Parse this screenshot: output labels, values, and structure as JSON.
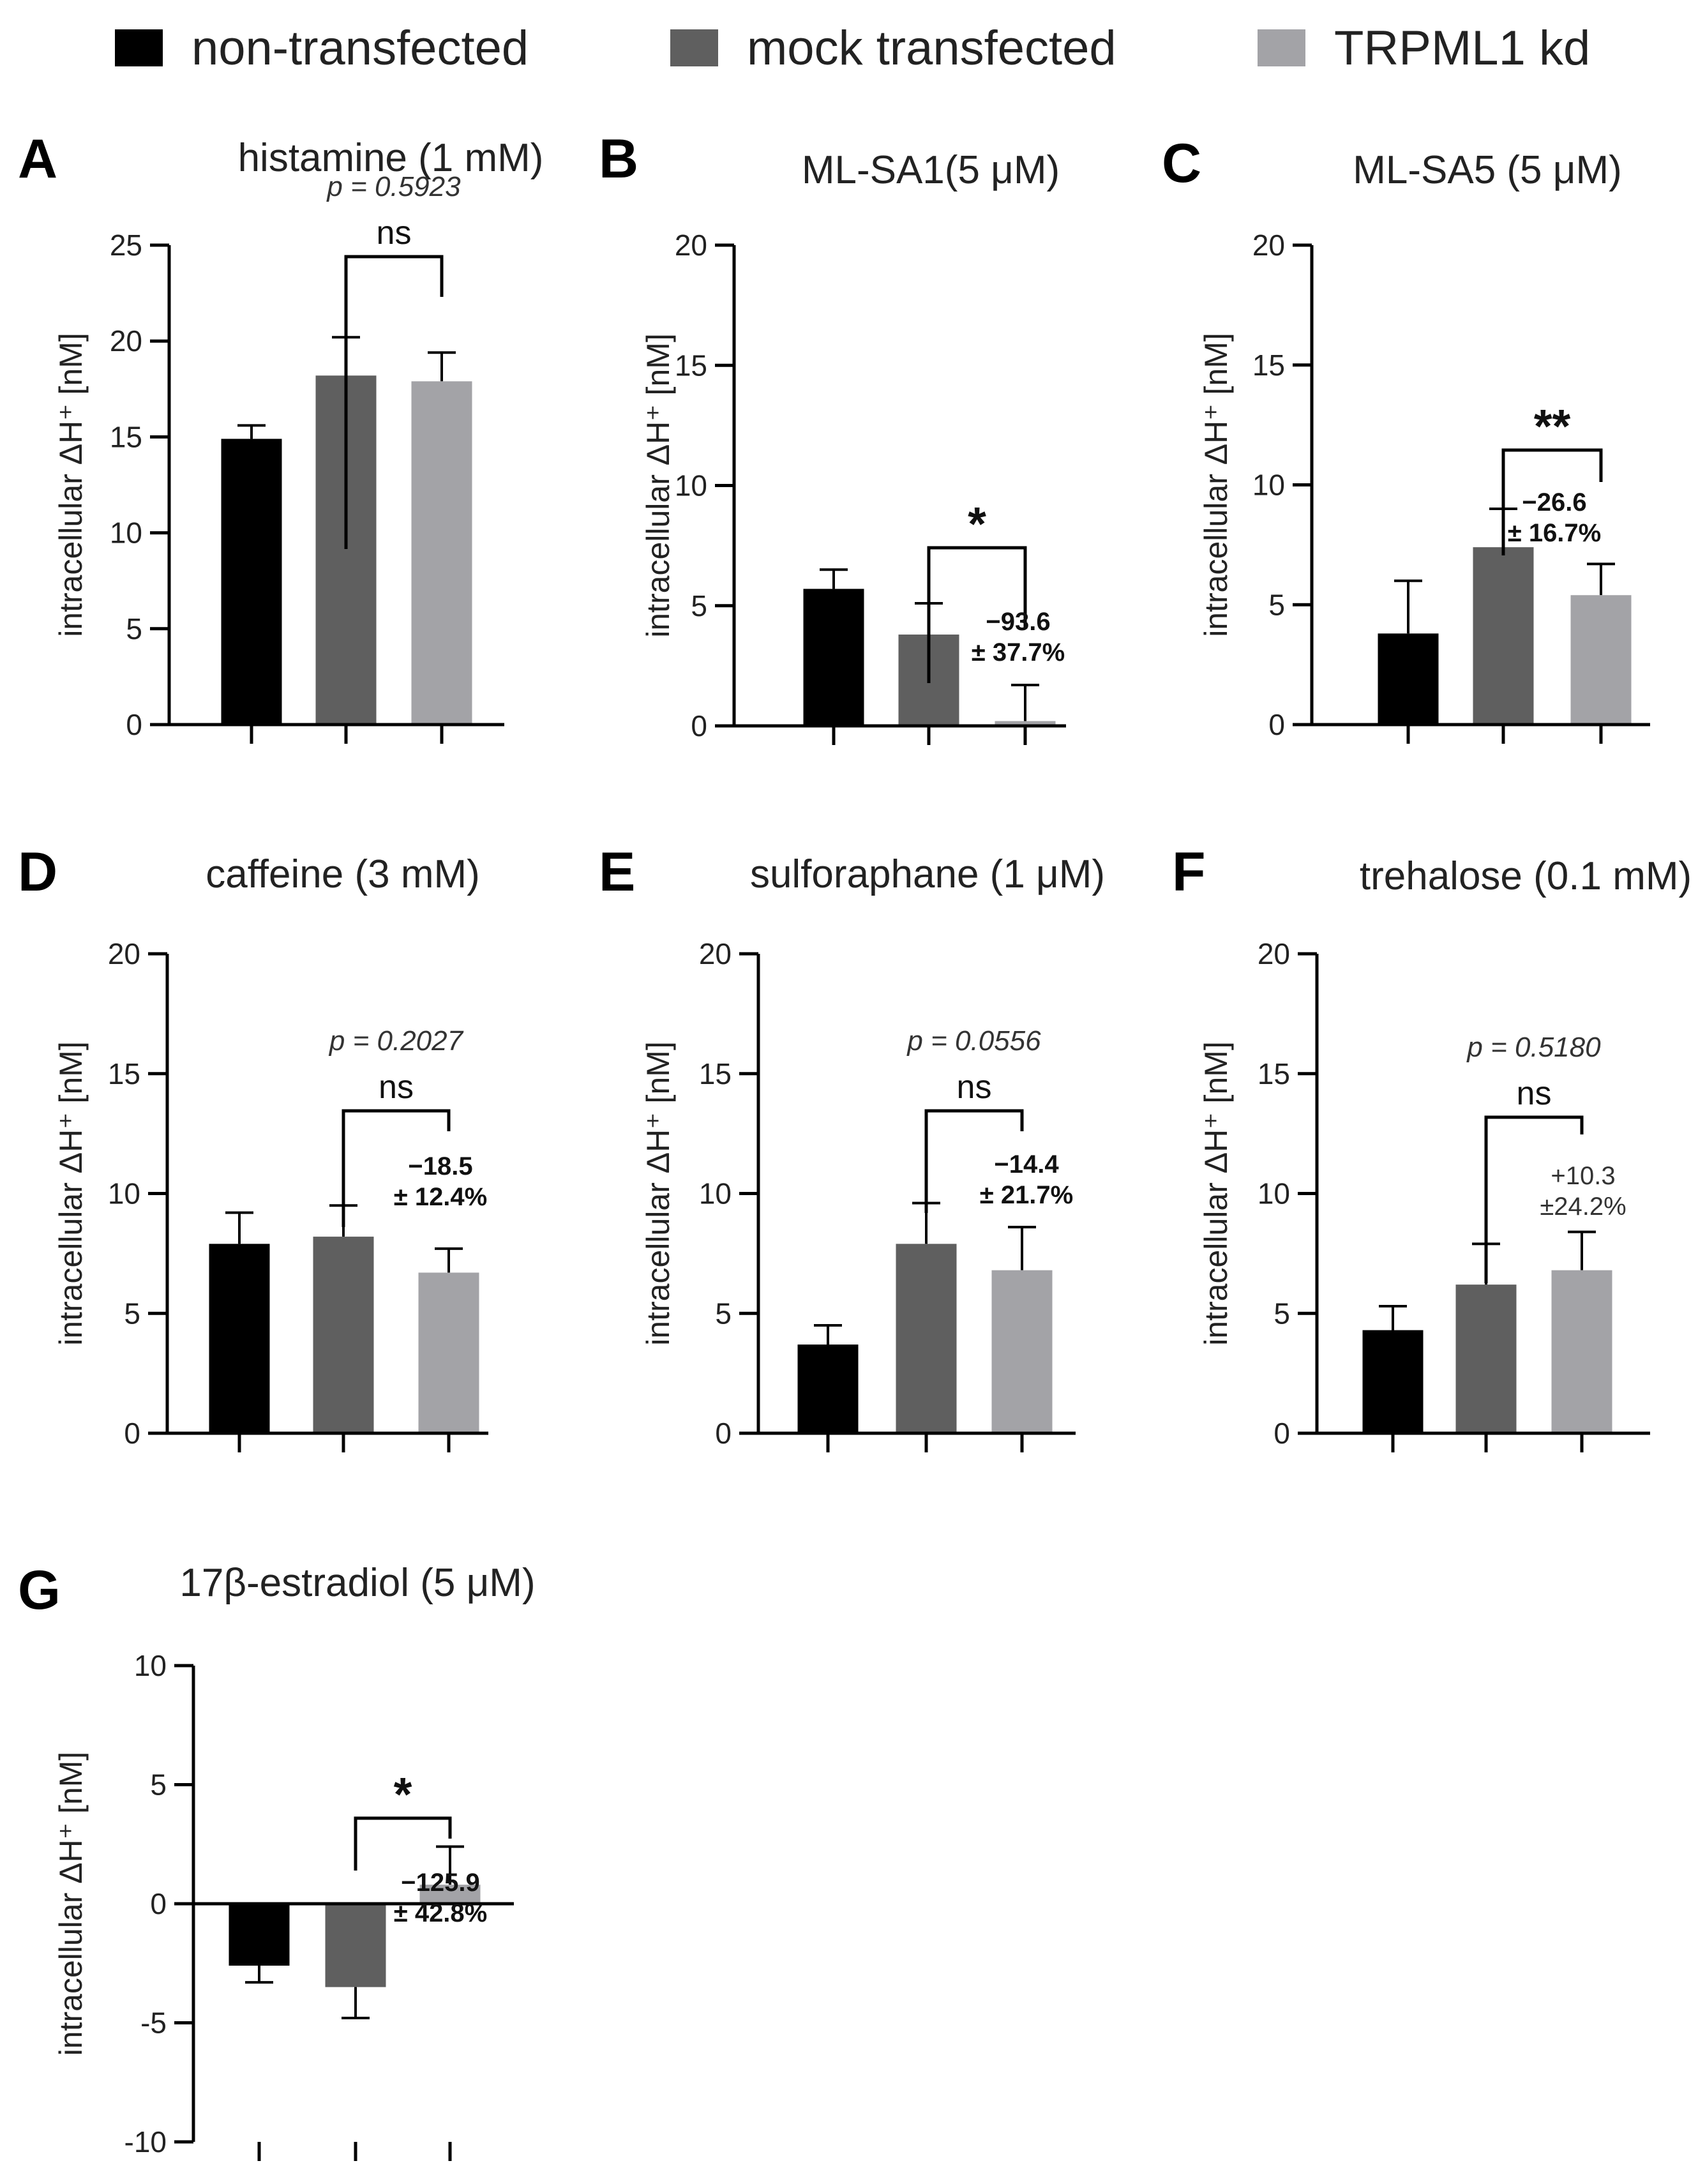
{
  "legend": [
    {
      "label": "non-transfected",
      "color": "#000000"
    },
    {
      "label": "mock transfected",
      "color": "#5f5f5f"
    },
    {
      "label": "TRPML1 kd",
      "color": "#a3a3a7"
    }
  ],
  "chart_data": [
    {
      "panel": "A",
      "type": "bar",
      "title": "histamine (1 mM)",
      "ylabel": "intracellular ΔH⁺ [nM]",
      "xlabel": "",
      "categories": [
        "non-transfected",
        "mock transfected",
        "TRPML1 kd"
      ],
      "values": [
        14.9,
        18.2,
        17.9
      ],
      "errors": [
        0.7,
        2.0,
        1.5
      ],
      "ylim": [
        0,
        25
      ],
      "yticks": [
        0,
        5,
        10,
        15,
        20,
        25
      ],
      "comparison": {
        "from": 1,
        "to": 2,
        "pvalue": "p = 0.5923",
        "sig": "ns",
        "change": null
      }
    },
    {
      "panel": "B",
      "type": "bar",
      "title": "ML-SA1(5 μM)",
      "ylabel": "intracellular ΔH⁺ [nM]",
      "xlabel": "",
      "categories": [
        "non-transfected",
        "mock transfected",
        "TRPML1 kd"
      ],
      "values": [
        5.7,
        3.8,
        0.2
      ],
      "errors": [
        0.8,
        1.3,
        1.5
      ],
      "ylim": [
        0,
        20
      ],
      "yticks": [
        0,
        5,
        10,
        15,
        20
      ],
      "comparison": {
        "from": 1,
        "to": 2,
        "pvalue": null,
        "sig": "*",
        "change": [
          "−93.6",
          "± 37.7%"
        ]
      }
    },
    {
      "panel": "C",
      "type": "bar",
      "title": "ML-SA5 (5 μM)",
      "ylabel": "intracellular ΔH⁺ [nM]",
      "xlabel": "",
      "categories": [
        "non-transfected",
        "mock transfected",
        "TRPML1 kd"
      ],
      "values": [
        3.8,
        7.4,
        5.4
      ],
      "errors": [
        2.2,
        1.6,
        1.3
      ],
      "ylim": [
        0,
        20
      ],
      "yticks": [
        0,
        5,
        10,
        15,
        20
      ],
      "comparison": {
        "from": 1,
        "to": 2,
        "pvalue": null,
        "sig": "**",
        "change": [
          "−26.6",
          "± 16.7%"
        ]
      }
    },
    {
      "panel": "D",
      "type": "bar",
      "title": "caffeine (3 mM)",
      "ylabel": "intracellular ΔH⁺ [nM]",
      "xlabel": "",
      "categories": [
        "non-transfected",
        "mock transfected",
        "TRPML1 kd"
      ],
      "values": [
        7.9,
        8.2,
        6.7
      ],
      "errors": [
        1.3,
        1.3,
        1.0
      ],
      "ylim": [
        0,
        20
      ],
      "yticks": [
        0,
        5,
        10,
        15,
        20
      ],
      "comparison": {
        "from": 1,
        "to": 2,
        "pvalue": "p = 0.2027",
        "sig": "ns",
        "change": [
          "−18.5",
          "± 12.4%"
        ]
      }
    },
    {
      "panel": "E",
      "type": "bar",
      "title": "sulforaphane (1 μM)",
      "ylabel": "intracellular ΔH⁺ [nM]",
      "xlabel": "",
      "categories": [
        "non-transfected",
        "mock transfected",
        "TRPML1 kd"
      ],
      "values": [
        3.7,
        7.9,
        6.8
      ],
      "errors": [
        0.8,
        1.7,
        1.8
      ],
      "ylim": [
        0,
        20
      ],
      "yticks": [
        0,
        5,
        10,
        15,
        20
      ],
      "comparison": {
        "from": 1,
        "to": 2,
        "pvalue": "p = 0.0556",
        "sig": "ns",
        "change": [
          "−14.4",
          "± 21.7%"
        ]
      }
    },
    {
      "panel": "F",
      "type": "bar",
      "title": "trehalose (0.1 mM)",
      "ylabel": "intracellular ΔH⁺ [nM]",
      "xlabel": "",
      "categories": [
        "non-transfected",
        "mock transfected",
        "TRPML1 kd"
      ],
      "values": [
        4.3,
        6.2,
        6.8
      ],
      "errors": [
        1.0,
        1.7,
        1.6
      ],
      "ylim": [
        0,
        20
      ],
      "yticks": [
        0,
        5,
        10,
        15,
        20
      ],
      "comparison": {
        "from": 1,
        "to": 2,
        "pvalue": "p = 0.5180",
        "sig": "ns",
        "change": [
          "+10.3",
          "±24.2%"
        ],
        "change_bold": false
      }
    },
    {
      "panel": "G",
      "type": "bar",
      "title": "17β-estradiol (5 μM)",
      "ylabel": "intracellular ΔH⁺ [nM]",
      "xlabel": "",
      "categories": [
        "non-transfected",
        "mock transfected",
        "TRPML1 kd"
      ],
      "values": [
        -2.6,
        -3.5,
        0.8
      ],
      "errors": [
        0.7,
        1.3,
        1.6
      ],
      "ylim": [
        -10,
        10
      ],
      "yticks": [
        -10,
        -5,
        0,
        5,
        10
      ],
      "comparison": {
        "from": 1,
        "to": 2,
        "pvalue": null,
        "sig": "*",
        "change": [
          "−125.9",
          "± 42.8%"
        ]
      }
    }
  ]
}
